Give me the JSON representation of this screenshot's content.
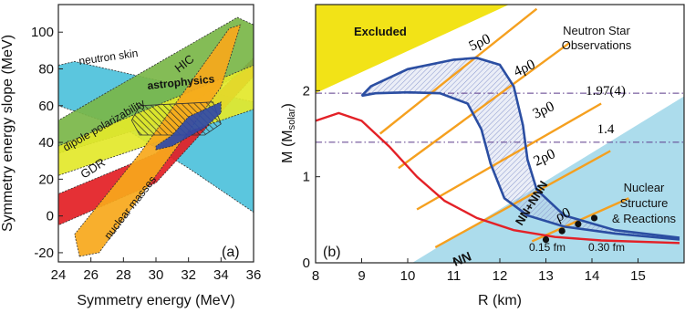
{
  "chart_data": [
    {
      "panel": "(a)",
      "type": "area",
      "xlabel": "Symmetry energy (MeV)",
      "ylabel": "Symmetry energy slope (MeV)",
      "xlim": [
        24,
        36
      ],
      "ylim": [
        -25,
        115
      ],
      "xticks": [
        24,
        26,
        28,
        30,
        32,
        34,
        36
      ],
      "yticks": [
        -20,
        0,
        20,
        40,
        60,
        80,
        100
      ],
      "regions": [
        {
          "name": "neutron skin",
          "color": "#5bc6de",
          "polygon": [
            [
              24,
              82
            ],
            [
              25,
              84
            ],
            [
              30,
              74
            ],
            [
              36,
              62
            ],
            [
              36,
              2
            ],
            [
              32,
              26
            ],
            [
              28,
              48
            ],
            [
              24,
              60
            ]
          ]
        },
        {
          "name": "GDR",
          "color": "#e31e24",
          "polygon": [
            [
              24,
              -5
            ],
            [
              24,
              12
            ],
            [
              30,
              34
            ],
            [
              36,
              86
            ],
            [
              36,
              76
            ],
            [
              30,
              18
            ]
          ]
        },
        {
          "name": "HIC",
          "color": "#7ab648",
          "polygon": [
            [
              24,
              34
            ],
            [
              24,
              52
            ],
            [
              35,
              108
            ],
            [
              36,
              104
            ],
            [
              36,
              82
            ],
            [
              30,
              50
            ]
          ]
        },
        {
          "name": "dipole polarizability",
          "color": "#e3e82a",
          "polygon": [
            [
              24,
              22
            ],
            [
              24,
              38
            ],
            [
              30,
              60
            ],
            [
              36,
              82
            ],
            [
              36,
              58
            ],
            [
              30,
              40
            ]
          ]
        },
        {
          "name": "nuclear masses",
          "color": "#f7a81b",
          "polygon": [
            [
              25.3,
              -22
            ],
            [
              25,
              -10
            ],
            [
              29,
              34
            ],
            [
              34.5,
              102
            ],
            [
              35.2,
              104
            ],
            [
              34,
              70
            ],
            [
              29,
              10
            ],
            [
              26.5,
              -20
            ]
          ]
        },
        {
          "name": "astrophysics",
          "color": "#2b2b2b",
          "polygon": [
            [
              28.5,
              52
            ],
            [
              29,
              60
            ],
            [
              33.5,
              62
            ],
            [
              34,
              50
            ],
            [
              33,
              44
            ],
            [
              29,
              44
            ]
          ]
        },
        {
          "name": "",
          "color": "#2f4aa8",
          "polygon": [
            [
              30,
              36
            ],
            [
              31,
              38
            ],
            [
              33,
              48
            ],
            [
              34,
              56
            ],
            [
              34,
              62
            ],
            [
              32,
              54
            ],
            [
              31,
              44
            ],
            [
              30,
              38
            ]
          ]
        }
      ]
    },
    {
      "panel": "(b)",
      "type": "line",
      "xlabel": "R (km)",
      "ylabel": "M (M_solar)",
      "xlim": [
        8,
        16
      ],
      "ylim": [
        0,
        3
      ],
      "xticks": [
        8,
        9,
        10,
        11,
        12,
        13,
        14,
        15
      ],
      "yticks": [
        0,
        1,
        2
      ],
      "hlines": [
        {
          "y": 1.97,
          "label": "1.97(4)"
        },
        {
          "y": 1.4,
          "label": "1.4"
        }
      ],
      "density_lines": [
        {
          "label": "ρ0",
          "points": [
            [
              12.7,
              0.25
            ],
            [
              14.8,
              0.75
            ]
          ]
        },
        {
          "label": "2ρ0",
          "points": [
            [
              10.6,
              0.18
            ],
            [
              14.4,
              1.3
            ]
          ]
        },
        {
          "label": "3ρ0",
          "points": [
            [
              10.2,
              0.62
            ],
            [
              14.2,
              1.85
            ]
          ]
        },
        {
          "label": "4ρ0",
          "points": [
            [
              9.8,
              1.1
            ],
            [
              13.5,
              2.55
            ]
          ]
        },
        {
          "label": "5ρ0",
          "points": [
            [
              9.4,
              1.5
            ],
            [
              12.8,
              2.95
            ]
          ]
        }
      ],
      "series": [
        {
          "name": "NN",
          "color": "#e32127",
          "points": [
            [
              8.0,
              1.65
            ],
            [
              8.5,
              1.74
            ],
            [
              9.0,
              1.65
            ],
            [
              9.6,
              1.35
            ],
            [
              10.2,
              1.0
            ],
            [
              10.8,
              0.72
            ],
            [
              11.5,
              0.52
            ],
            [
              12.3,
              0.38
            ],
            [
              13.2,
              0.3
            ],
            [
              14.2,
              0.26
            ],
            [
              15.9,
              0.23
            ]
          ]
        },
        {
          "name": "NN+NNN",
          "color": "#2b4ea2",
          "points": [
            [
              9.0,
              1.94
            ],
            [
              9.2,
              2.05
            ],
            [
              10.0,
              2.25
            ],
            [
              11.0,
              2.36
            ],
            [
              11.5,
              2.38
            ],
            [
              12.0,
              2.3
            ],
            [
              12.3,
              2.05
            ],
            [
              12.5,
              1.6
            ],
            [
              12.6,
              1.2
            ],
            [
              12.8,
              0.85
            ],
            [
              13.4,
              0.55
            ],
            [
              14.5,
              0.38
            ],
            [
              15.9,
              0.29
            ]
          ]
        },
        {
          "name": "NN+NNN",
          "color": "#2b4ea2",
          "points": [
            [
              9.0,
              1.94
            ],
            [
              9.3,
              1.97
            ],
            [
              10.0,
              1.98
            ],
            [
              10.7,
              1.97
            ],
            [
              11.3,
              1.85
            ],
            [
              11.6,
              1.55
            ],
            [
              11.8,
              1.15
            ],
            [
              12.1,
              0.75
            ],
            [
              12.6,
              0.55
            ],
            [
              13.4,
              0.42
            ],
            [
              14.5,
              0.34
            ],
            [
              15.9,
              0.27
            ]
          ]
        }
      ],
      "markers": [
        {
          "label": "0.15 fm",
          "points": [
            [
              13.0,
              0.27
            ]
          ]
        },
        {
          "label": "",
          "points": [
            [
              13.35,
              0.37
            ]
          ]
        },
        {
          "label": "",
          "points": [
            [
              13.7,
              0.45
            ]
          ]
        },
        {
          "label": "0.30 fm",
          "points": [
            [
              14.05,
              0.52
            ]
          ]
        }
      ],
      "regions": [
        {
          "name": "Excluded",
          "color": "#f2e317"
        },
        {
          "name": "Neutron Star Observations",
          "color": "#ffffff"
        },
        {
          "name": "Nuclear Structure & Reactions",
          "color": "#acdcec"
        }
      ]
    }
  ],
  "labels": {
    "a": {
      "panel": "(a)",
      "neutron_skin": "neutron skin",
      "hic": "HIC",
      "astrophysics": "astrophysics",
      "dipole": "dipole polarizability",
      "gdr": "GDR",
      "masses": "nuclear masses"
    },
    "b": {
      "panel": "(b)",
      "excluded": "Excluded",
      "ns1": "Neutron Star",
      "ns2": "Observations",
      "nsr1": "Nuclear",
      "nsr2": "Structure",
      "nsr3": "& Reactions",
      "nn": "NN",
      "nnnnn": "NN+NNN",
      "rho": [
        "ρ0",
        "2ρ0",
        "3ρ0",
        "4ρ0",
        "5ρ0"
      ],
      "m197": "1.97(4)",
      "m14": "1.4",
      "d015": "0.15 fm",
      "d030": "0.30 fm"
    }
  }
}
